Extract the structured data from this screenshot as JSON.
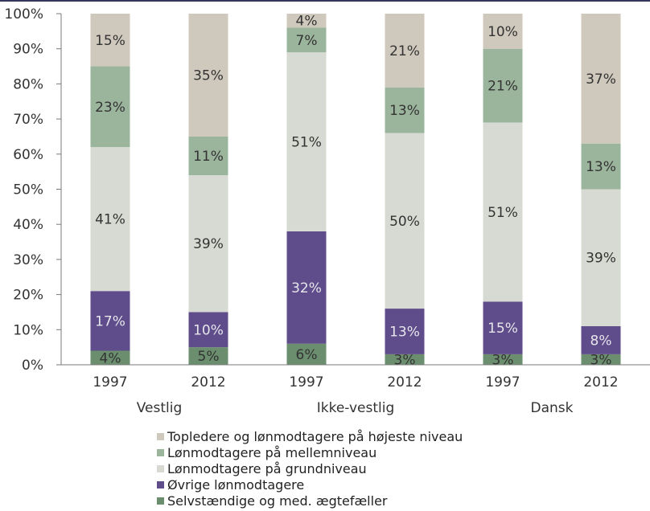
{
  "chart_data": {
    "type": "bar",
    "stacked": true,
    "y_format": "percent",
    "ylim": [
      0,
      100
    ],
    "yticks": [
      0,
      10,
      20,
      30,
      40,
      50,
      60,
      70,
      80,
      90,
      100
    ],
    "grid": false,
    "legend_position": "bottom",
    "categories": [
      "1997",
      "2012",
      "1997",
      "2012",
      "1997",
      "2012"
    ],
    "groups": [
      {
        "label": "Vestlig",
        "span": [
          0,
          1
        ]
      },
      {
        "label": "Ikke-vestlig",
        "span": [
          2,
          3
        ]
      },
      {
        "label": "Dansk",
        "span": [
          4,
          5
        ]
      }
    ],
    "series": [
      {
        "name": "Selvstændige og med. ægtefæller",
        "color": "#6a8e6e",
        "label_color": "dark",
        "values": [
          4,
          5,
          6,
          3,
          3,
          3
        ],
        "labels": [
          "4%",
          "5%",
          "6%",
          "3%",
          "3%",
          "3%"
        ]
      },
      {
        "name": "Øvrige lønmodtagere",
        "color": "#5f4c8a",
        "label_color": "light",
        "values": [
          17,
          10,
          32,
          13,
          15,
          8
        ],
        "labels": [
          "17%",
          "10%",
          "32%",
          "13%",
          "15%",
          "8%"
        ]
      },
      {
        "name": "Lønmodtagere på grundniveau",
        "color": "#d6dad2",
        "label_color": "dark",
        "values": [
          41,
          39,
          51,
          50,
          51,
          39
        ],
        "labels": [
          "41%",
          "39%",
          "51%",
          "50%",
          "51%",
          "39%"
        ]
      },
      {
        "name": "Lønmodtagere på mellemniveau",
        "color": "#9bb49c",
        "label_color": "dark",
        "values": [
          23,
          11,
          7,
          13,
          21,
          13
        ],
        "labels": [
          "23%",
          "11%",
          "7%",
          "13%",
          "21%",
          "13%"
        ]
      },
      {
        "name": "Topledere og lønmodtagere på højeste niveau",
        "color": "#cfc8bc",
        "label_color": "dark",
        "values": [
          15,
          35,
          4,
          21,
          10,
          37
        ],
        "labels": [
          "15%",
          "35%",
          "4%",
          "21%",
          "10%",
          "37%"
        ]
      }
    ]
  }
}
